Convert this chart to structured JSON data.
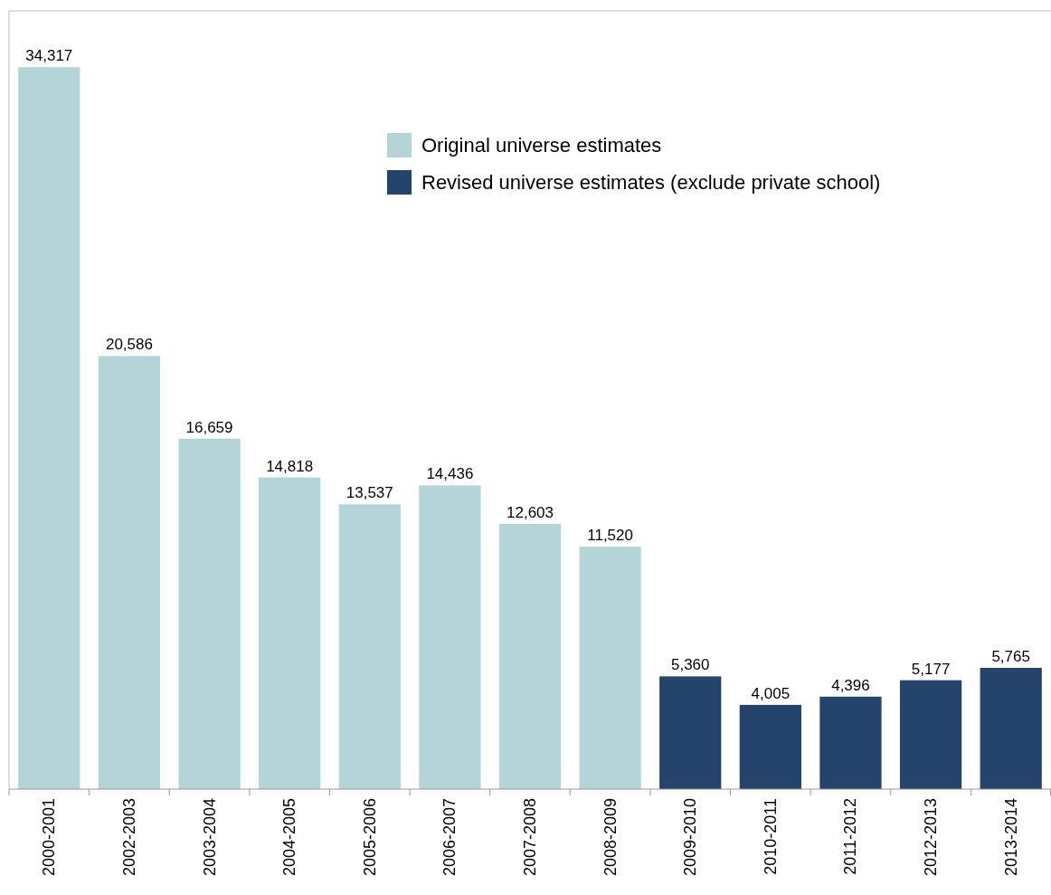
{
  "chart_data": {
    "type": "bar",
    "stacked": true,
    "legend": "top right",
    "categories": [
      "2000-2001",
      "2002-2003",
      "2003-2004",
      "2004-2005",
      "2005-2006",
      "2006-2007",
      "2007-2008",
      "2008-2009",
      "2009-2010",
      "2010-2011",
      "2011-2012",
      "2012-2013",
      "2013-2014"
    ],
    "series": [
      {
        "name": "Original universe estimates",
        "color": "#b4d4d8",
        "values": [
          34317,
          20586,
          16659,
          14818,
          13537,
          14436,
          12603,
          11520,
          null,
          null,
          null,
          null,
          null
        ],
        "value_labels": [
          "34,317",
          "20,586",
          "16,659",
          "14,818",
          "13,537",
          "14,436",
          "12,603",
          "11,520",
          null,
          null,
          null,
          null,
          null
        ]
      },
      {
        "name": "Revised universe estimates (exclude private school)",
        "color": "#25446c",
        "values": [
          null,
          null,
          null,
          null,
          null,
          null,
          null,
          null,
          5360,
          4005,
          4396,
          5177,
          5765
        ],
        "value_labels": [
          null,
          null,
          null,
          null,
          null,
          null,
          null,
          null,
          "5,360",
          "4,005",
          "4,396",
          "5,177",
          "5,765"
        ]
      }
    ]
  }
}
